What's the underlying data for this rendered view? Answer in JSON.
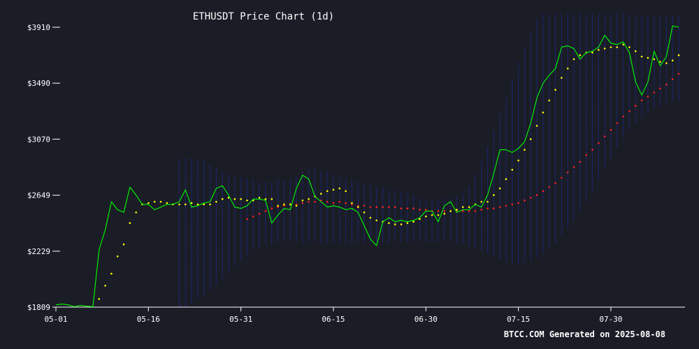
{
  "chart_data": {
    "type": "line",
    "title": "ETHUSDT Price Chart (1d)",
    "credit": "BTCC.COM Generated on 2025-08-08",
    "xlabel": "",
    "ylabel": "",
    "grid": false,
    "ylim": [
      1809,
      4010
    ],
    "y_ticks": [
      1809,
      2229,
      2649,
      3070,
      3490,
      3910
    ],
    "y_tick_labels": [
      "$1809",
      "$2229",
      "$2649",
      "$3070",
      "$3490",
      "$3910"
    ],
    "x_ticks": [
      "05-01",
      "05-16",
      "05-31",
      "06-15",
      "06-30",
      "07-15",
      "07-30"
    ],
    "x_start": "2025-05-01",
    "colors": {
      "price": "#00ff00",
      "ma_fast": "#ffff00",
      "ma_slow": "#ff2020",
      "bands": "#1e2a9e",
      "background": "#1a1d26",
      "axis": "#ffffff"
    },
    "series": [
      {
        "values": [
          1826,
          1832,
          1826,
          1812,
          1822,
          1816,
          1812,
          2240,
          2390,
          2600,
          2540,
          2520,
          2710,
          2650,
          2580,
          2580,
          2540,
          2560,
          2580,
          2580,
          2600,
          2690,
          2560,
          2570,
          2590,
          2600,
          2700,
          2720,
          2650,
          2560,
          2550,
          2570,
          2620,
          2620,
          2610,
          2440,
          2500,
          2550,
          2540,
          2700,
          2800,
          2770,
          2640,
          2600,
          2560,
          2570,
          2560,
          2540,
          2550,
          2520,
          2420,
          2320,
          2270,
          2450,
          2480,
          2450,
          2460,
          2450,
          2460,
          2480,
          2530,
          2530,
          2450,
          2570,
          2600,
          2520,
          2540,
          2540,
          2580,
          2560,
          2650,
          2810,
          2990,
          2990,
          2970,
          3000,
          3050,
          3190,
          3380,
          3490,
          3550,
          3600,
          3760,
          3770,
          3750,
          3670,
          3720,
          3730,
          3760,
          3850,
          3790,
          3780,
          3800,
          3720,
          3500,
          3400,
          3500,
          3730,
          3620,
          3690,
          3920,
          3910
        ]
      },
      {
        "values": [
          null,
          null,
          null,
          null,
          null,
          null,
          null,
          1870,
          1970,
          2060,
          2190,
          2280,
          2440,
          2520,
          2580,
          2590,
          2600,
          2600,
          2590,
          2580,
          2580,
          2580,
          2590,
          2580,
          2580,
          2580,
          2600,
          2620,
          2630,
          2620,
          2620,
          2610,
          2610,
          2630,
          2620,
          2620,
          2570,
          2580,
          2580,
          2570,
          2610,
          2620,
          2640,
          2660,
          2680,
          2690,
          2700,
          2680,
          2590,
          2560,
          2520,
          2480,
          2460,
          2450,
          2440,
          2430,
          2430,
          2440,
          2450,
          2470,
          2490,
          2500,
          2500,
          2510,
          2530,
          2540,
          2560,
          2560,
          2580,
          2600,
          2600,
          2650,
          2700,
          2770,
          2840,
          2910,
          2990,
          3070,
          3170,
          3270,
          3360,
          3440,
          3530,
          3600,
          3670,
          3700,
          3720,
          3720,
          3740,
          3750,
          3760,
          3760,
          3780,
          3760,
          3730,
          3690,
          3680,
          3670,
          3650,
          3640,
          3660,
          3700
        ]
      },
      {
        "values": [
          null,
          null,
          null,
          null,
          null,
          null,
          null,
          null,
          null,
          null,
          null,
          null,
          null,
          null,
          null,
          null,
          null,
          null,
          null,
          null,
          null,
          null,
          null,
          null,
          null,
          null,
          null,
          null,
          null,
          null,
          null,
          2470,
          2490,
          2510,
          2530,
          2550,
          2560,
          2570,
          2580,
          2580,
          2590,
          2600,
          2600,
          2610,
          2600,
          2590,
          2600,
          2590,
          2580,
          2570,
          2570,
          2560,
          2560,
          2560,
          2560,
          2560,
          2550,
          2550,
          2550,
          2540,
          2540,
          2530,
          2530,
          2530,
          2530,
          2530,
          2530,
          2530,
          2530,
          2540,
          2550,
          2550,
          2560,
          2570,
          2580,
          2590,
          2610,
          2630,
          2650,
          2680,
          2710,
          2740,
          2780,
          2820,
          2860,
          2900,
          2950,
          2990,
          3040,
          3090,
          3140,
          3190,
          3240,
          3280,
          3320,
          3360,
          3390,
          3420,
          3450,
          3480,
          3520,
          3560
        ]
      },
      {
        "values": [
          null,
          null,
          null,
          null,
          null,
          null,
          null,
          null,
          null,
          null,
          null,
          null,
          null,
          null,
          null,
          null,
          null,
          null,
          null,
          null,
          null,
          null,
          null,
          null,
          null,
          null,
          null,
          null,
          null,
          null,
          null,
          null,
          null,
          null,
          null,
          null,
          null,
          null,
          null,
          null,
          null,
          null,
          null,
          null,
          null,
          null,
          null,
          null,
          null,
          null,
          null,
          null,
          null,
          null,
          null,
          null,
          null,
          null,
          null,
          null,
          null,
          null,
          null,
          null,
          null,
          null,
          null,
          null,
          null,
          null,
          null,
          null,
          null,
          null,
          null,
          null,
          null,
          null,
          null,
          null,
          null,
          null,
          null,
          null,
          null,
          null,
          null,
          null,
          null,
          null,
          null,
          null,
          null,
          null,
          null,
          null,
          null,
          null,
          null,
          null,
          null,
          null
        ]
      }
    ],
    "bands": {
      "upper": [
        null,
        null,
        null,
        null,
        null,
        null,
        null,
        null,
        null,
        null,
        null,
        null,
        null,
        null,
        null,
        null,
        null,
        null,
        null,
        null,
        2920,
        2920,
        2920,
        2910,
        2910,
        2880,
        2850,
        2820,
        2800,
        2790,
        2780,
        2770,
        2760,
        2740,
        2740,
        2740,
        2760,
        2760,
        2760,
        2790,
        2820,
        2840,
        2840,
        2830,
        2820,
        2800,
        2780,
        2770,
        2760,
        2740,
        2730,
        2720,
        2710,
        2700,
        2690,
        2680,
        2670,
        2660,
        2640,
        2620,
        2610,
        2610,
        2610,
        2620,
        2630,
        2640,
        2660,
        2710,
        2800,
        2900,
        3010,
        3130,
        3260,
        3380,
        3510,
        3640,
        3760,
        3870,
        3970,
        4010,
        4010,
        4010,
        4010,
        4010,
        4010,
        4010,
        4010,
        4010,
        4010,
        4010,
        4010,
        4010,
        4010,
        4010,
        4000,
        3990,
        3990,
        3990,
        3990,
        3990,
        3990,
        3990
      ],
      "lower": [
        null,
        null,
        null,
        null,
        null,
        null,
        null,
        null,
        null,
        null,
        null,
        null,
        null,
        null,
        null,
        null,
        null,
        null,
        null,
        null,
        1810,
        1810,
        1840,
        1870,
        1900,
        1940,
        1980,
        2020,
        2070,
        2110,
        2160,
        2200,
        2240,
        2260,
        2270,
        2280,
        2290,
        2300,
        2300,
        2300,
        2290,
        2290,
        2290,
        2290,
        2290,
        2290,
        2290,
        2290,
        2290,
        2290,
        2290,
        2290,
        2290,
        2290,
        2290,
        2300,
        2300,
        2300,
        2300,
        2300,
        2300,
        2300,
        2300,
        2300,
        2300,
        2290,
        2280,
        2270,
        2250,
        2230,
        2210,
        2190,
        2170,
        2150,
        2140,
        2130,
        2140,
        2160,
        2180,
        2210,
        2250,
        2290,
        2340,
        2400,
        2460,
        2530,
        2600,
        2680,
        2760,
        2850,
        2930,
        3010,
        3080,
        3140,
        3190,
        3230,
        3270,
        3300,
        3320,
        3340,
        3350,
        3360
      ]
    }
  }
}
